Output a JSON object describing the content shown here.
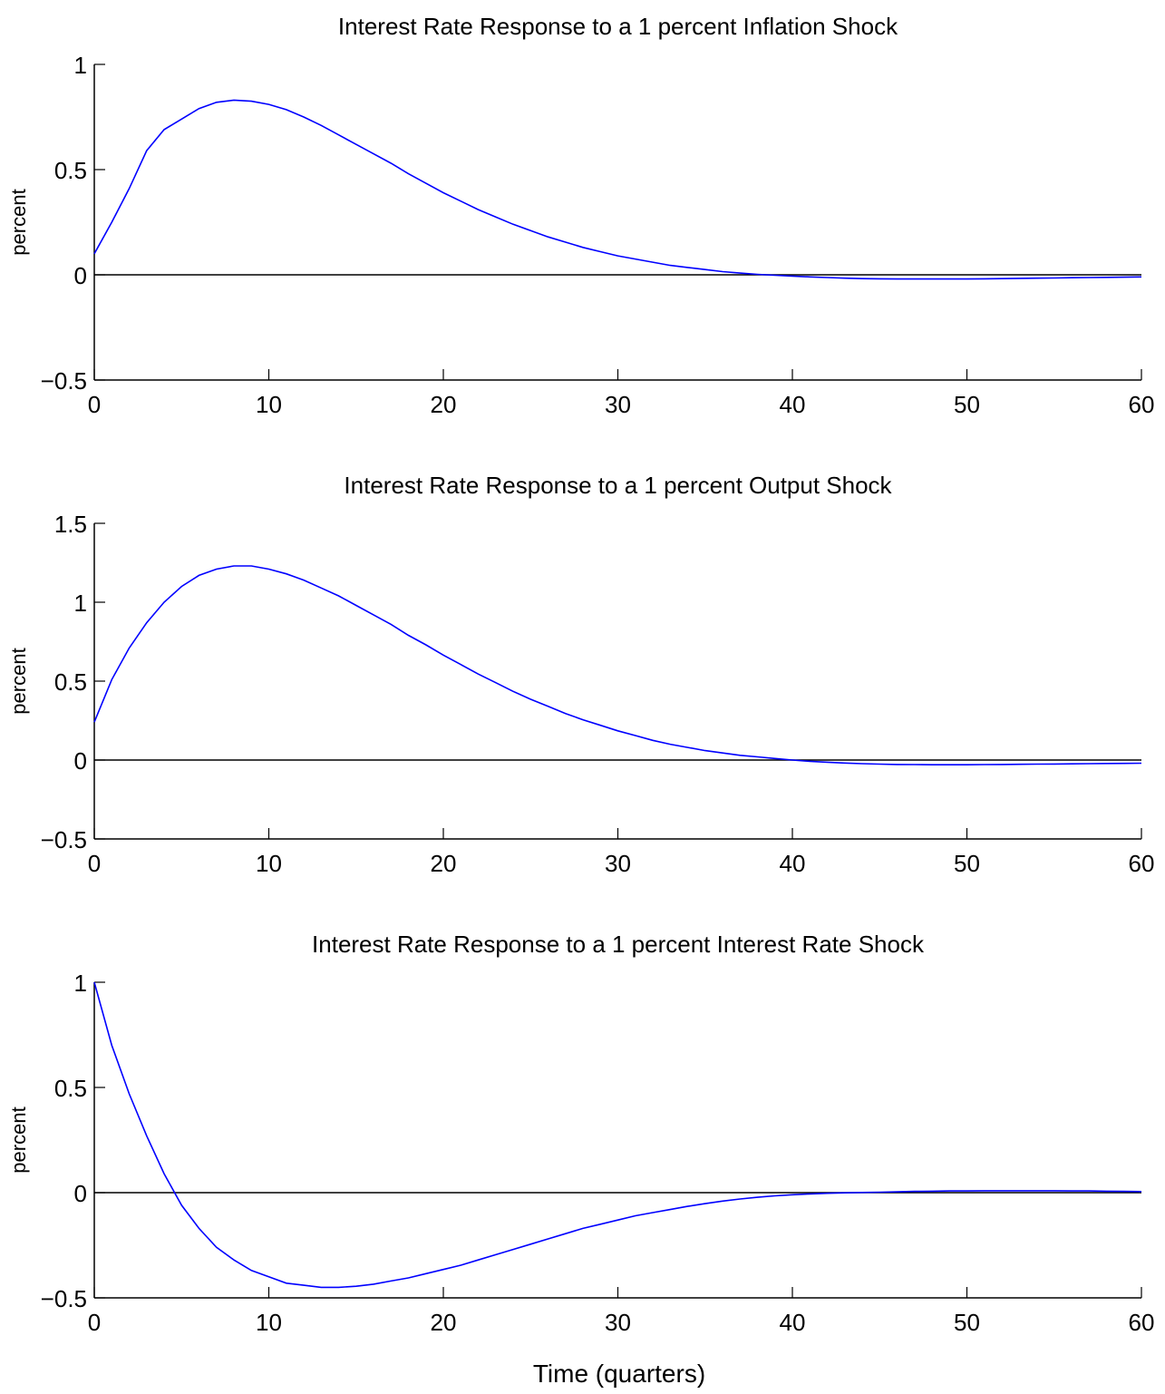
{
  "figure": {
    "xlabel": "Time (quarters)"
  },
  "chart_data": [
    {
      "type": "line",
      "title": "Interest Rate Response to a 1 percent Inflation Shock",
      "xlabel": "",
      "ylabel": "percent",
      "xlim": [
        0,
        60
      ],
      "ylim": [
        -0.5,
        1
      ],
      "xticks": [
        0,
        10,
        20,
        30,
        40,
        50,
        60
      ],
      "xtick_labels": [
        "0",
        "10",
        "20",
        "30",
        "40",
        "50",
        "60"
      ],
      "yticks": [
        -0.5,
        0,
        0.5,
        1
      ],
      "ytick_labels": [
        "−0.5",
        "0",
        "0.5",
        "1"
      ],
      "grid": false,
      "zero_line": true,
      "series_color": "#0000ff",
      "series": [
        {
          "x": [
            0,
            1,
            2,
            3,
            4,
            5,
            6,
            7,
            8,
            9,
            10,
            11,
            12,
            13,
            14,
            15,
            16,
            17,
            18,
            19,
            20,
            21,
            22,
            23,
            24,
            25,
            26,
            27,
            28,
            29,
            30,
            31,
            32,
            33,
            34,
            35,
            36,
            37,
            38,
            39,
            40,
            41,
            42,
            43,
            44,
            45,
            46,
            47,
            48,
            49,
            50,
            51,
            52,
            53,
            54,
            55,
            56,
            57,
            58,
            59,
            60
          ],
          "values": [
            0.1,
            0.25,
            0.41,
            0.59,
            0.69,
            0.74,
            0.79,
            0.82,
            0.83,
            0.825,
            0.81,
            0.785,
            0.75,
            0.71,
            0.665,
            0.62,
            0.575,
            0.53,
            0.48,
            0.435,
            0.39,
            0.35,
            0.31,
            0.275,
            0.24,
            0.21,
            0.18,
            0.155,
            0.13,
            0.11,
            0.09,
            0.075,
            0.06,
            0.045,
            0.035,
            0.025,
            0.015,
            0.008,
            0.002,
            -0.002,
            -0.006,
            -0.01,
            -0.013,
            -0.016,
            -0.018,
            -0.019,
            -0.02,
            -0.02,
            -0.02,
            -0.02,
            -0.02,
            -0.019,
            -0.018,
            -0.017,
            -0.016,
            -0.015,
            -0.014,
            -0.013,
            -0.012,
            -0.011,
            -0.01
          ]
        }
      ]
    },
    {
      "type": "line",
      "title": "Interest Rate Response to a 1 percent Output Shock",
      "xlabel": "",
      "ylabel": "percent",
      "xlim": [
        0,
        60
      ],
      "ylim": [
        -0.5,
        1.5
      ],
      "xticks": [
        0,
        10,
        20,
        30,
        40,
        50,
        60
      ],
      "xtick_labels": [
        "0",
        "10",
        "20",
        "30",
        "40",
        "50",
        "60"
      ],
      "yticks": [
        -0.5,
        0,
        0.5,
        1,
        1.5
      ],
      "ytick_labels": [
        "−0.5",
        "0",
        "0.5",
        "1",
        "1.5"
      ],
      "grid": false,
      "zero_line": true,
      "series_color": "#0000ff",
      "series": [
        {
          "x": [
            0,
            1,
            2,
            3,
            4,
            5,
            6,
            7,
            8,
            9,
            10,
            11,
            12,
            13,
            14,
            15,
            16,
            17,
            18,
            19,
            20,
            21,
            22,
            23,
            24,
            25,
            26,
            27,
            28,
            29,
            30,
            31,
            32,
            33,
            34,
            35,
            36,
            37,
            38,
            39,
            40,
            41,
            42,
            43,
            44,
            45,
            46,
            47,
            48,
            49,
            50,
            51,
            52,
            53,
            54,
            55,
            56,
            57,
            58,
            59,
            60
          ],
          "values": [
            0.24,
            0.51,
            0.71,
            0.87,
            1.0,
            1.1,
            1.17,
            1.21,
            1.23,
            1.23,
            1.21,
            1.18,
            1.14,
            1.09,
            1.04,
            0.98,
            0.92,
            0.86,
            0.79,
            0.73,
            0.665,
            0.605,
            0.545,
            0.49,
            0.435,
            0.385,
            0.34,
            0.295,
            0.255,
            0.22,
            0.185,
            0.155,
            0.125,
            0.1,
            0.08,
            0.06,
            0.045,
            0.03,
            0.02,
            0.01,
            0.0,
            -0.008,
            -0.014,
            -0.019,
            -0.023,
            -0.026,
            -0.028,
            -0.029,
            -0.03,
            -0.03,
            -0.03,
            -0.029,
            -0.028,
            -0.027,
            -0.026,
            -0.025,
            -0.024,
            -0.023,
            -0.022,
            -0.021,
            -0.02
          ]
        }
      ]
    },
    {
      "type": "line",
      "title": "Interest Rate Response to a 1 percent Interest Rate Shock",
      "xlabel": "Time (quarters)",
      "ylabel": "percent",
      "xlim": [
        0,
        60
      ],
      "ylim": [
        -0.5,
        1
      ],
      "xticks": [
        0,
        10,
        20,
        30,
        40,
        50,
        60
      ],
      "xtick_labels": [
        "0",
        "10",
        "20",
        "30",
        "40",
        "50",
        "60"
      ],
      "yticks": [
        -0.5,
        0,
        0.5,
        1
      ],
      "ytick_labels": [
        "−0.5",
        "0",
        "0.5",
        "1"
      ],
      "grid": false,
      "zero_line": true,
      "series_color": "#0000ff",
      "series": [
        {
          "x": [
            0,
            1,
            2,
            3,
            4,
            5,
            6,
            7,
            8,
            9,
            10,
            11,
            12,
            13,
            14,
            15,
            16,
            17,
            18,
            19,
            20,
            21,
            22,
            23,
            24,
            25,
            26,
            27,
            28,
            29,
            30,
            31,
            32,
            33,
            34,
            35,
            36,
            37,
            38,
            39,
            40,
            41,
            42,
            43,
            44,
            45,
            46,
            47,
            48,
            49,
            50,
            51,
            52,
            53,
            54,
            55,
            56,
            57,
            58,
            59,
            60
          ],
          "values": [
            1.0,
            0.7,
            0.47,
            0.27,
            0.09,
            -0.06,
            -0.17,
            -0.26,
            -0.32,
            -0.37,
            -0.4,
            -0.43,
            -0.44,
            -0.45,
            -0.45,
            -0.445,
            -0.435,
            -0.42,
            -0.405,
            -0.385,
            -0.365,
            -0.345,
            -0.32,
            -0.295,
            -0.27,
            -0.245,
            -0.22,
            -0.195,
            -0.17,
            -0.15,
            -0.13,
            -0.11,
            -0.095,
            -0.08,
            -0.065,
            -0.052,
            -0.04,
            -0.03,
            -0.022,
            -0.015,
            -0.01,
            -0.006,
            -0.003,
            -0.001,
            0.001,
            0.002,
            0.004,
            0.006,
            0.007,
            0.008,
            0.008,
            0.009,
            0.009,
            0.009,
            0.009,
            0.009,
            0.008,
            0.008,
            0.007,
            0.006,
            0.005
          ]
        }
      ]
    }
  ]
}
